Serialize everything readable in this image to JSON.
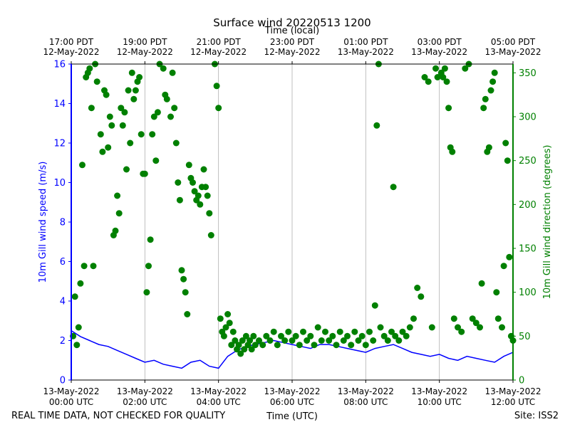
{
  "chart_data": {
    "type": "scatter",
    "title": "Surface wind 20220513 1200",
    "top_axis_label": "Time (local)",
    "xlabel": "Time (UTC)",
    "ylabel_left": "10m Gill wind speed (m/s)",
    "ylabel_right": "10m Gill wind direction (degrees)",
    "x_range_hours_utc": [
      0,
      12
    ],
    "ylim_left": [
      0,
      16
    ],
    "ylim_right": [
      0,
      360
    ],
    "grid": "vertical at major x ticks",
    "bottom_ticks": [
      {
        "hour": 0,
        "line1": "13-May-2022",
        "line2": "00:00 UTC"
      },
      {
        "hour": 2,
        "line1": "13-May-2022",
        "line2": "02:00 UTC"
      },
      {
        "hour": 4,
        "line1": "13-May-2022",
        "line2": "04:00 UTC"
      },
      {
        "hour": 6,
        "line1": "13-May-2022",
        "line2": "06:00 UTC"
      },
      {
        "hour": 8,
        "line1": "13-May-2022",
        "line2": "08:00 UTC"
      },
      {
        "hour": 10,
        "line1": "13-May-2022",
        "line2": "10:00 UTC"
      },
      {
        "hour": 12,
        "line1": "13-May-2022",
        "line2": "12:00 UTC"
      }
    ],
    "top_ticks": [
      {
        "hour": 0,
        "line1": "17:00 PDT",
        "line2": "12-May-2022"
      },
      {
        "hour": 2,
        "line1": "19:00 PDT",
        "line2": "12-May-2022"
      },
      {
        "hour": 4,
        "line1": "21:00 PDT",
        "line2": "12-May-2022"
      },
      {
        "hour": 6,
        "line1": "23:00 PDT",
        "line2": "12-May-2022"
      },
      {
        "hour": 8,
        "line1": "01:00 PDT",
        "line2": "13-May-2022"
      },
      {
        "hour": 10,
        "line1": "03:00 PDT",
        "line2": "13-May-2022"
      },
      {
        "hour": 12,
        "line1": "05:00 PDT",
        "line2": "13-May-2022"
      }
    ],
    "left_ticks": [
      0,
      2,
      4,
      6,
      8,
      10,
      12,
      14,
      16
    ],
    "right_ticks": [
      0,
      50,
      100,
      150,
      200,
      250,
      300,
      350
    ],
    "speed_series": {
      "color": "#0000ff",
      "x_hours": [
        0.0,
        0.25,
        0.5,
        0.75,
        1.0,
        1.25,
        1.5,
        1.75,
        2.0,
        2.25,
        2.5,
        2.75,
        3.0,
        3.25,
        3.5,
        3.75,
        4.0,
        4.25,
        4.5,
        4.75,
        5.0,
        5.25,
        5.5,
        5.75,
        6.0,
        6.25,
        6.5,
        6.75,
        7.0,
        7.25,
        7.5,
        7.75,
        8.0,
        8.25,
        8.5,
        8.75,
        9.0,
        9.25,
        9.5,
        9.75,
        10.0,
        10.25,
        10.5,
        10.75,
        11.0,
        11.25,
        11.5,
        11.75,
        12.0
      ],
      "y_mps": [
        2.5,
        2.2,
        2.0,
        1.8,
        1.7,
        1.5,
        1.3,
        1.1,
        0.9,
        1.0,
        0.8,
        0.7,
        0.6,
        0.9,
        1.0,
        0.7,
        0.6,
        1.2,
        1.5,
        1.7,
        1.8,
        1.9,
        2.0,
        1.9,
        1.8,
        1.7,
        1.6,
        1.8,
        1.8,
        1.7,
        1.6,
        1.5,
        1.4,
        1.6,
        1.7,
        1.8,
        1.6,
        1.4,
        1.3,
        1.2,
        1.3,
        1.1,
        1.0,
        1.2,
        1.1,
        1.0,
        0.9,
        1.2,
        1.4
      ]
    },
    "direction_series": {
      "color": "#008000",
      "points_hours_deg": [
        [
          0.05,
          50
        ],
        [
          0.1,
          95
        ],
        [
          0.15,
          40
        ],
        [
          0.2,
          60
        ],
        [
          0.25,
          110
        ],
        [
          0.3,
          245
        ],
        [
          0.35,
          130
        ],
        [
          0.4,
          345
        ],
        [
          0.45,
          350
        ],
        [
          0.5,
          355
        ],
        [
          0.55,
          310
        ],
        [
          0.6,
          130
        ],
        [
          0.65,
          360
        ],
        [
          0.7,
          340
        ],
        [
          0.8,
          280
        ],
        [
          0.85,
          260
        ],
        [
          0.9,
          330
        ],
        [
          0.95,
          325
        ],
        [
          1.0,
          265
        ],
        [
          1.05,
          300
        ],
        [
          1.1,
          290
        ],
        [
          1.15,
          165
        ],
        [
          1.2,
          170
        ],
        [
          1.25,
          210
        ],
        [
          1.3,
          190
        ],
        [
          1.35,
          310
        ],
        [
          1.4,
          290
        ],
        [
          1.45,
          305
        ],
        [
          1.5,
          240
        ],
        [
          1.55,
          330
        ],
        [
          1.6,
          270
        ],
        [
          1.65,
          350
        ],
        [
          1.7,
          320
        ],
        [
          1.75,
          330
        ],
        [
          1.8,
          340
        ],
        [
          1.85,
          345
        ],
        [
          1.9,
          280
        ],
        [
          1.95,
          235
        ],
        [
          2.0,
          235
        ],
        [
          2.05,
          100
        ],
        [
          2.1,
          130
        ],
        [
          2.15,
          160
        ],
        [
          2.2,
          280
        ],
        [
          2.25,
          300
        ],
        [
          2.3,
          250
        ],
        [
          2.35,
          305
        ],
        [
          2.4,
          360
        ],
        [
          2.5,
          355
        ],
        [
          2.55,
          325
        ],
        [
          2.6,
          320
        ],
        [
          2.7,
          300
        ],
        [
          2.75,
          350
        ],
        [
          2.8,
          310
        ],
        [
          2.85,
          270
        ],
        [
          2.9,
          225
        ],
        [
          2.95,
          205
        ],
        [
          3.0,
          125
        ],
        [
          3.05,
          115
        ],
        [
          3.1,
          100
        ],
        [
          3.15,
          75
        ],
        [
          3.2,
          245
        ],
        [
          3.25,
          230
        ],
        [
          3.3,
          225
        ],
        [
          3.35,
          215
        ],
        [
          3.4,
          205
        ],
        [
          3.45,
          210
        ],
        [
          3.5,
          200
        ],
        [
          3.55,
          220
        ],
        [
          3.6,
          240
        ],
        [
          3.65,
          220
        ],
        [
          3.7,
          210
        ],
        [
          3.75,
          190
        ],
        [
          3.8,
          165
        ],
        [
          3.9,
          360
        ],
        [
          3.95,
          335
        ],
        [
          4.0,
          310
        ],
        [
          4.05,
          70
        ],
        [
          4.1,
          55
        ],
        [
          4.15,
          50
        ],
        [
          4.2,
          60
        ],
        [
          4.25,
          75
        ],
        [
          4.3,
          65
        ],
        [
          4.35,
          40
        ],
        [
          4.4,
          55
        ],
        [
          4.45,
          45
        ],
        [
          4.5,
          35
        ],
        [
          4.55,
          40
        ],
        [
          4.6,
          30
        ],
        [
          4.65,
          45
        ],
        [
          4.7,
          35
        ],
        [
          4.75,
          50
        ],
        [
          4.8,
          40
        ],
        [
          4.85,
          45
        ],
        [
          4.9,
          35
        ],
        [
          4.95,
          50
        ],
        [
          5.0,
          40
        ],
        [
          5.1,
          45
        ],
        [
          5.2,
          40
        ],
        [
          5.3,
          50
        ],
        [
          5.4,
          45
        ],
        [
          5.5,
          55
        ],
        [
          5.6,
          40
        ],
        [
          5.7,
          50
        ],
        [
          5.8,
          45
        ],
        [
          5.9,
          55
        ],
        [
          6.0,
          45
        ],
        [
          6.1,
          50
        ],
        [
          6.2,
          40
        ],
        [
          6.3,
          55
        ],
        [
          6.4,
          45
        ],
        [
          6.5,
          50
        ],
        [
          6.6,
          40
        ],
        [
          6.7,
          60
        ],
        [
          6.8,
          45
        ],
        [
          6.9,
          55
        ],
        [
          7.0,
          45
        ],
        [
          7.1,
          50
        ],
        [
          7.2,
          40
        ],
        [
          7.3,
          55
        ],
        [
          7.4,
          45
        ],
        [
          7.5,
          50
        ],
        [
          7.6,
          40
        ],
        [
          7.7,
          55
        ],
        [
          7.8,
          45
        ],
        [
          7.9,
          50
        ],
        [
          8.0,
          40
        ],
        [
          8.1,
          55
        ],
        [
          8.2,
          45
        ],
        [
          8.25,
          85
        ],
        [
          8.3,
          290
        ],
        [
          8.35,
          360
        ],
        [
          8.4,
          60
        ],
        [
          8.5,
          50
        ],
        [
          8.6,
          45
        ],
        [
          8.7,
          55
        ],
        [
          8.75,
          220
        ],
        [
          8.8,
          50
        ],
        [
          8.9,
          45
        ],
        [
          9.0,
          55
        ],
        [
          9.1,
          50
        ],
        [
          9.2,
          60
        ],
        [
          9.3,
          70
        ],
        [
          9.4,
          105
        ],
        [
          9.5,
          95
        ],
        [
          9.6,
          345
        ],
        [
          9.7,
          340
        ],
        [
          9.8,
          60
        ],
        [
          9.9,
          355
        ],
        [
          9.95,
          345
        ],
        [
          10.05,
          350
        ],
        [
          10.1,
          345
        ],
        [
          10.15,
          355
        ],
        [
          10.2,
          340
        ],
        [
          10.25,
          310
        ],
        [
          10.3,
          265
        ],
        [
          10.35,
          260
        ],
        [
          10.4,
          70
        ],
        [
          10.5,
          60
        ],
        [
          10.6,
          55
        ],
        [
          10.7,
          355
        ],
        [
          10.8,
          360
        ],
        [
          10.9,
          70
        ],
        [
          11.0,
          65
        ],
        [
          11.1,
          60
        ],
        [
          11.15,
          110
        ],
        [
          11.2,
          310
        ],
        [
          11.25,
          320
        ],
        [
          11.3,
          260
        ],
        [
          11.35,
          265
        ],
        [
          11.4,
          330
        ],
        [
          11.45,
          340
        ],
        [
          11.5,
          350
        ],
        [
          11.55,
          100
        ],
        [
          11.6,
          70
        ],
        [
          11.7,
          60
        ],
        [
          11.75,
          130
        ],
        [
          11.8,
          270
        ],
        [
          11.85,
          250
        ],
        [
          11.9,
          140
        ],
        [
          11.95,
          50
        ],
        [
          12.0,
          45
        ]
      ]
    }
  },
  "footer": {
    "disclaimer": "REAL TIME DATA, NOT CHECKED FOR QUALITY",
    "site": "Site: ISS2"
  },
  "colors": {
    "speed_axis": "#0000ff",
    "direction_axis": "#008000",
    "grid": "#b0b0b0"
  }
}
